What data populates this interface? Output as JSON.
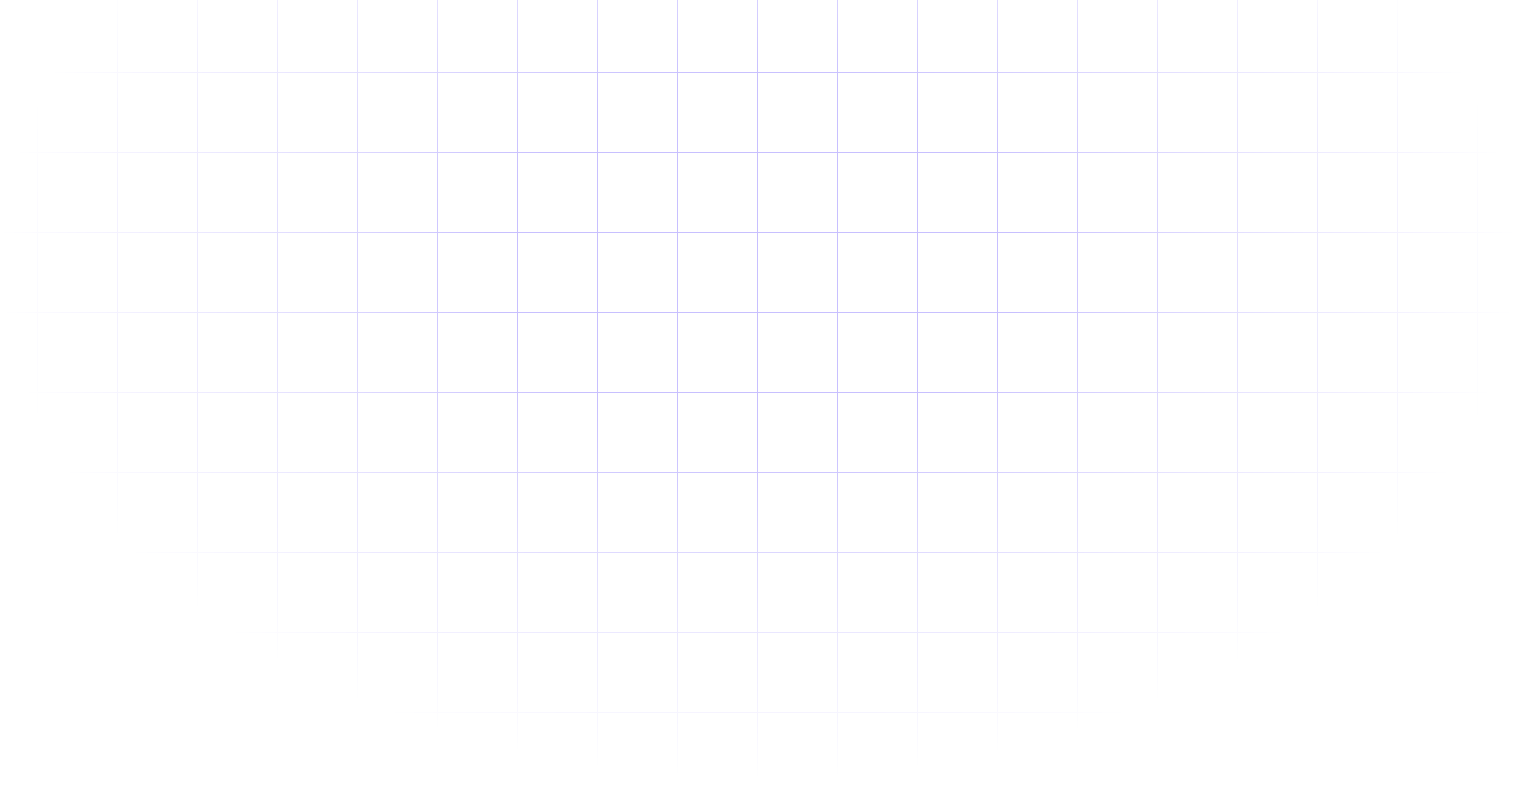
{
  "background": {
    "pattern": "grid",
    "grid_color": "#c8c0ff",
    "fade": "radial"
  }
}
